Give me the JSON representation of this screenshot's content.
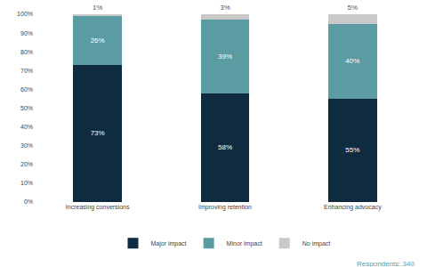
{
  "chart_data": {
    "type": "bar",
    "stacked": true,
    "data_labels": true,
    "grid": false,
    "legend": "bottom",
    "categories": [
      "Increasing conversions",
      "Improving retention",
      "Enhancing advocacy"
    ],
    "series": [
      {
        "name": "Major impact",
        "color": "#0e2b3f",
        "values": [
          73,
          58,
          55
        ],
        "value_labels": [
          "73%",
          "58%",
          "55%"
        ]
      },
      {
        "name": "Minor impact",
        "color": "#5b9ba2",
        "values": [
          26,
          39,
          40
        ],
        "value_labels": [
          "26%",
          "39%",
          "40%"
        ]
      },
      {
        "name": "No impact",
        "color": "#c9c9c9",
        "values": [
          1,
          3,
          5
        ],
        "value_labels": [
          "1%",
          "3%",
          "5%"
        ]
      }
    ],
    "ylim": [
      0,
      100
    ],
    "yticks": [
      {
        "value": 0,
        "label": "0%"
      },
      {
        "value": 10,
        "label": "10%"
      },
      {
        "value": 20,
        "label": "20%"
      },
      {
        "value": 30,
        "label": "30%"
      },
      {
        "value": 40,
        "label": "40%"
      },
      {
        "value": 50,
        "label": "50%"
      },
      {
        "value": 60,
        "label": "60%"
      },
      {
        "value": 70,
        "label": "70%"
      },
      {
        "value": 80,
        "label": "80%"
      },
      {
        "value": 90,
        "label": "90%"
      },
      {
        "value": 100,
        "label": "100%"
      }
    ],
    "annotations": [
      "Respondents: 340"
    ]
  }
}
